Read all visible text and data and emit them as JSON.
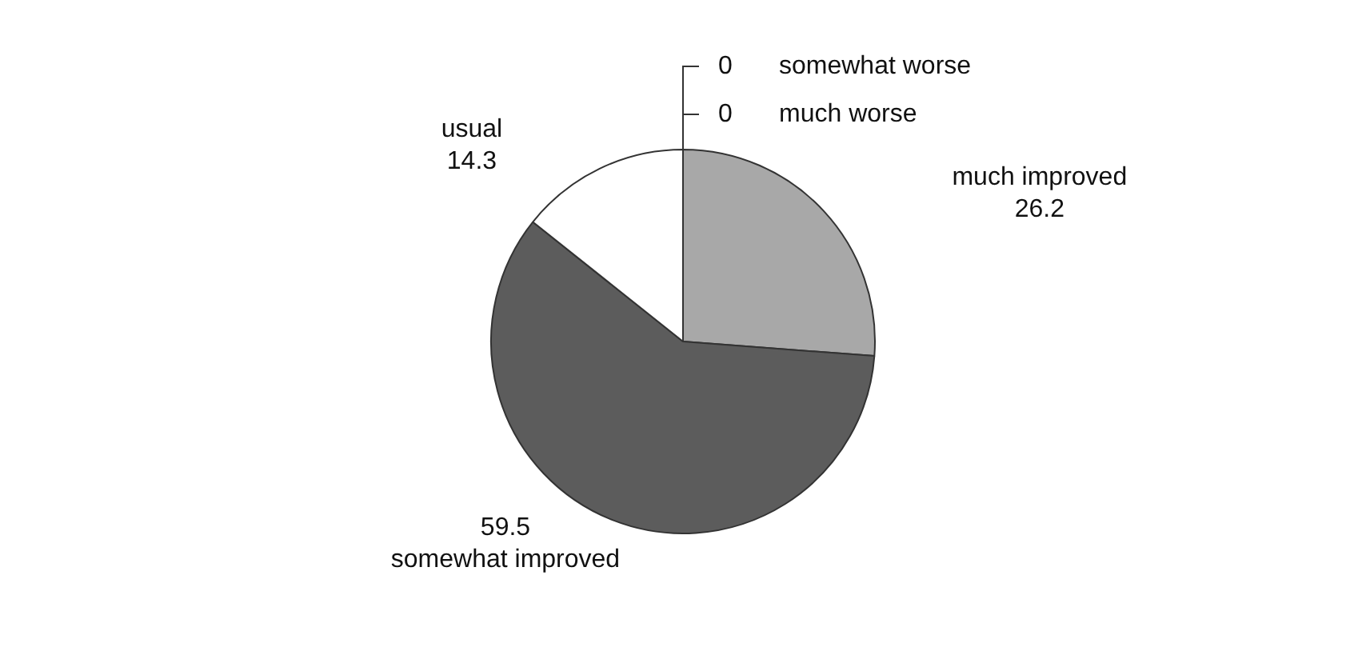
{
  "chart_data": {
    "type": "pie",
    "categories": [
      "much improved",
      "somewhat improved",
      "usual",
      "much worse",
      "somewhat worse"
    ],
    "values": [
      26.2,
      59.5,
      14.3,
      0,
      0
    ],
    "colors": [
      "#a8a8a8",
      "#5c5c5c",
      "#ffffff",
      "#808080",
      "#c0c0c0"
    ],
    "value_labels": [
      "26.2",
      "59.5",
      "14.3",
      "0",
      "0"
    ],
    "legend": false
  }
}
